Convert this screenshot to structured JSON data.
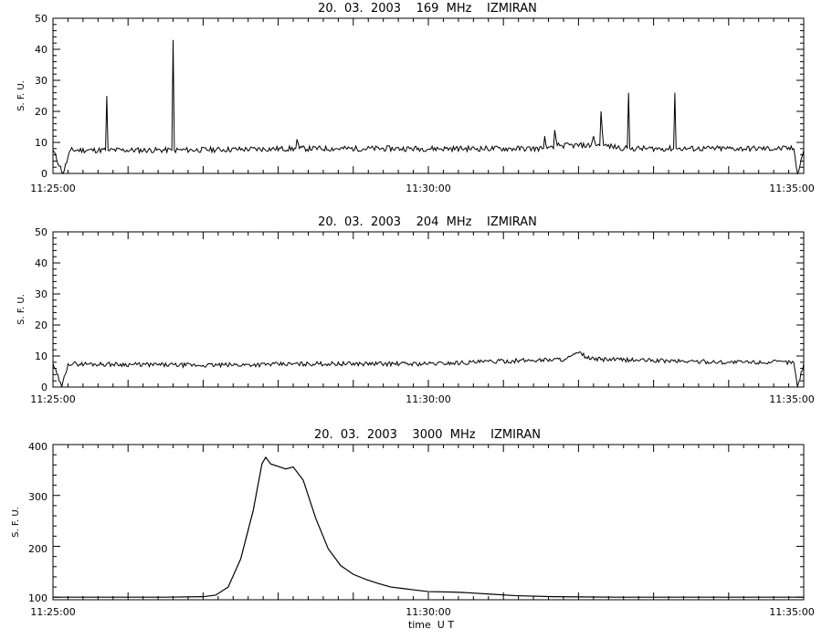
{
  "chart_data": [
    {
      "type": "line",
      "title": "20.  03.  2003    169  MHz    IZMIRAN",
      "ylabel": "S. F. U.",
      "xlabel": "",
      "xlim": [
        "11:25:00",
        "11:35:00"
      ],
      "ylim": [
        0,
        50
      ],
      "yticks": [
        "0",
        "10",
        "20",
        "30",
        "40",
        "50"
      ],
      "xticks": [
        "11:25:00",
        "11:30:00",
        "11:35:00"
      ],
      "baseline": 7.5,
      "series": [
        {
          "name": "",
          "points": [
            [
              "11:25:00",
              7.5
            ],
            [
              "11:25:08",
              0
            ],
            [
              "11:25:14",
              7.5
            ],
            [
              "11:25:42",
              7.5
            ],
            [
              "11:25:43",
              25
            ],
            [
              "11:25:44",
              7.5
            ],
            [
              "11:26:35",
              7.5
            ],
            [
              "11:26:36",
              43
            ],
            [
              "11:26:37",
              7.5
            ],
            [
              "11:28:14",
              8
            ],
            [
              "11:28:15",
              11
            ],
            [
              "11:28:17",
              8
            ],
            [
              "11:31:32",
              8
            ],
            [
              "11:31:33",
              12
            ],
            [
              "11:31:35",
              8
            ],
            [
              "11:31:40",
              8
            ],
            [
              "11:31:41",
              14
            ],
            [
              "11:31:43",
              9
            ],
            [
              "11:32:10",
              9
            ],
            [
              "11:32:12",
              12
            ],
            [
              "11:32:14",
              9
            ],
            [
              "11:32:17",
              9
            ],
            [
              "11:32:18",
              20
            ],
            [
              "11:32:20",
              9
            ],
            [
              "11:32:39",
              8
            ],
            [
              "11:32:40",
              26
            ],
            [
              "11:32:41",
              8
            ],
            [
              "11:33:16",
              8
            ],
            [
              "11:33:17",
              26
            ],
            [
              "11:33:18",
              8
            ],
            [
              "11:34:52",
              8
            ],
            [
              "11:34:55",
              0
            ],
            [
              "11:35:00",
              7.5
            ]
          ]
        }
      ]
    },
    {
      "type": "line",
      "title": "20.  03.  2003    204  MHz    IZMIRAN",
      "ylabel": "S. F. U.",
      "xlabel": "",
      "xlim": [
        "11:25:00",
        "11:35:00"
      ],
      "ylim": [
        0,
        50
      ],
      "yticks": [
        "0",
        "10",
        "20",
        "30",
        "40",
        "50"
      ],
      "xticks": [
        "11:25:00",
        "11:30:00",
        "11:35:00"
      ],
      "baseline": 7.5,
      "series": [
        {
          "name": "",
          "points": [
            [
              "11:25:00",
              7.5
            ],
            [
              "11:25:07",
              0
            ],
            [
              "11:25:12",
              7.5
            ],
            [
              "11:27:00",
              7
            ],
            [
              "11:28:30",
              7.5
            ],
            [
              "11:30:00",
              7.5
            ],
            [
              "11:31:50",
              9
            ],
            [
              "11:32:00",
              11
            ],
            [
              "11:32:10",
              9
            ],
            [
              "11:34:00",
              8
            ],
            [
              "11:34:52",
              8
            ],
            [
              "11:34:55",
              0
            ],
            [
              "11:35:00",
              7.5
            ]
          ]
        }
      ]
    },
    {
      "type": "line",
      "title": "20.  03.  2003    3000  MHz    IZMIRAN",
      "ylabel": "S. F. U.",
      "xlabel": "time  U T",
      "xlim": [
        "11:25:00",
        "11:35:00"
      ],
      "ylim": [
        95,
        400
      ],
      "yticks": [
        "100",
        "200",
        "300",
        "400"
      ],
      "xticks": [
        "11:25:00",
        "11:30:00",
        "11:35:00"
      ],
      "series": [
        {
          "name": "",
          "points": [
            [
              "11:25:00",
              100
            ],
            [
              "11:26:30",
              100
            ],
            [
              "11:27:00",
              101
            ],
            [
              "11:27:10",
              104
            ],
            [
              "11:27:20",
              120
            ],
            [
              "11:27:30",
              175
            ],
            [
              "11:27:40",
              270
            ],
            [
              "11:27:47",
              362
            ],
            [
              "11:27:50",
              375
            ],
            [
              "11:27:54",
              362
            ],
            [
              "11:28:00",
              357
            ],
            [
              "11:28:06",
              352
            ],
            [
              "11:28:12",
              356
            ],
            [
              "11:28:20",
              330
            ],
            [
              "11:28:30",
              255
            ],
            [
              "11:28:40",
              195
            ],
            [
              "11:28:50",
              162
            ],
            [
              "11:29:00",
              145
            ],
            [
              "11:29:10",
              135
            ],
            [
              "11:29:20",
              127
            ],
            [
              "11:29:30",
              120
            ],
            [
              "11:29:40",
              117
            ],
            [
              "11:29:50",
              114
            ],
            [
              "11:30:00",
              111
            ],
            [
              "11:30:20",
              110
            ],
            [
              "11:30:30",
              109
            ],
            [
              "11:30:50",
              106
            ],
            [
              "11:31:10",
              103
            ],
            [
              "11:31:40",
              101
            ],
            [
              "11:32:30",
              100
            ],
            [
              "11:35:00",
              100
            ]
          ]
        }
      ]
    }
  ]
}
